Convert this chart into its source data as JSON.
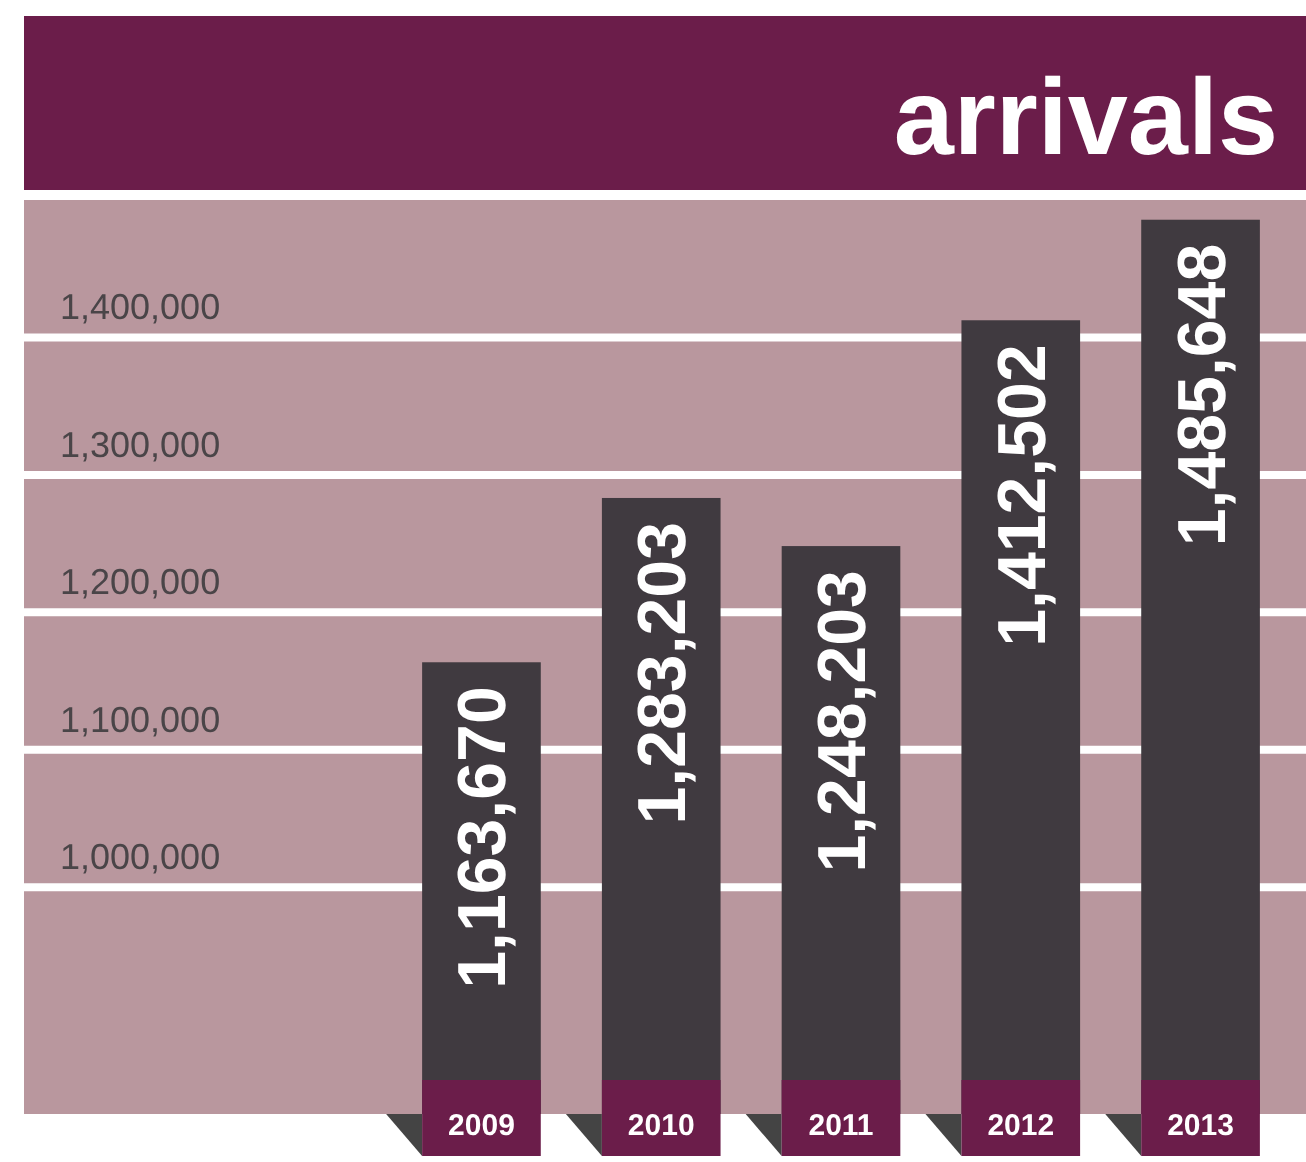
{
  "chart_data": {
    "type": "bar",
    "title": "arrivals",
    "categories": [
      "2009",
      "2010",
      "2011",
      "2012",
      "2013"
    ],
    "values": [
      1163670,
      1283203,
      1248203,
      1412502,
      1485648
    ],
    "color": "#403a40",
    "ylim": [
      835000,
      1500000
    ],
    "yticks": [
      {
        "value": 1000000,
        "label": "1,000,000"
      },
      {
        "value": 1100000,
        "label": "1,100,000"
      },
      {
        "value": 1200000,
        "label": "1,200,000"
      },
      {
        "value": 1300000,
        "label": "1,300,000"
      },
      {
        "value": 1400000,
        "label": "1,400,000"
      }
    ],
    "value_labels": [
      "1,163,670",
      "1,283,203",
      "1,248,203",
      "1,412,502",
      "1,485,648"
    ],
    "grid": "y"
  }
}
